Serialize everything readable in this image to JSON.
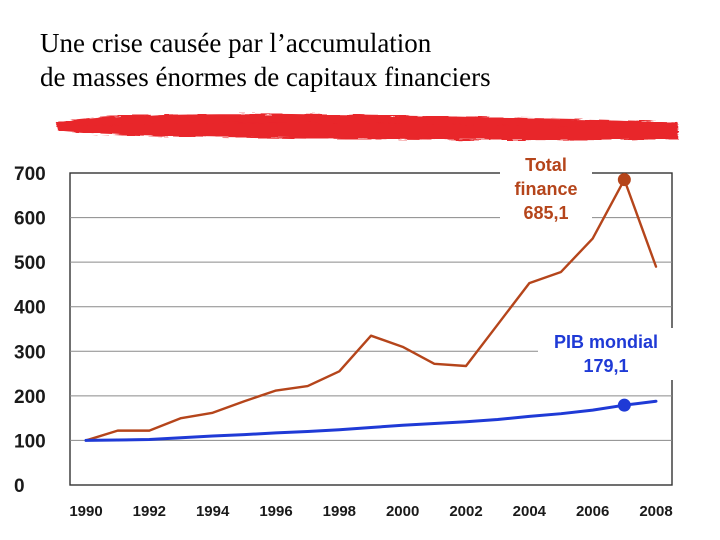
{
  "slide": {
    "title_line1": "Une crise causée par l’accumulation",
    "title_line2": "de masses énormes de capitaux financiers",
    "underline_color": "#e8262a"
  },
  "chart_data": {
    "type": "line",
    "x": [
      1990,
      1991,
      1992,
      1993,
      1994,
      1995,
      1996,
      1997,
      1998,
      1999,
      2000,
      2001,
      2002,
      2003,
      2004,
      2005,
      2006,
      2007,
      2008
    ],
    "xticks": [
      "1990",
      "1992",
      "1994",
      "1996",
      "1998",
      "2000",
      "2002",
      "2004",
      "2006",
      "2008"
    ],
    "yticks": [
      "0",
      "100",
      "200",
      "300",
      "400",
      "500",
      "600",
      "700"
    ],
    "ylim": [
      0,
      700
    ],
    "grid": true,
    "series": [
      {
        "name": "Total finance",
        "color": "#b5451b",
        "values": [
          100,
          122,
          122,
          150,
          162,
          188,
          212,
          222,
          255,
          335,
          310,
          272,
          267,
          360,
          453,
          478,
          553,
          685.1,
          490
        ]
      },
      {
        "name": "PIB mondial",
        "color": "#1f3ad6",
        "values": [
          100,
          101,
          102,
          106,
          110,
          113,
          117,
          120,
          124,
          129,
          134,
          138,
          142,
          147,
          154,
          160,
          168,
          179.1,
          188
        ]
      }
    ],
    "annotations": [
      {
        "lines": [
          "Total",
          "finance",
          "685,1"
        ],
        "color": "#b5451b",
        "series": 0,
        "x": 2007
      },
      {
        "lines": [
          "PIB mondial",
          "179,1"
        ],
        "color": "#1f3ad6",
        "series": 1,
        "x": 2007
      }
    ]
  }
}
